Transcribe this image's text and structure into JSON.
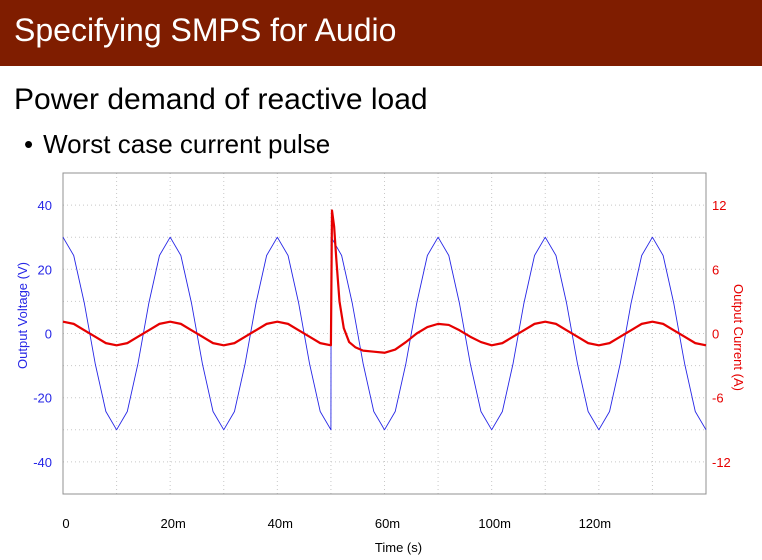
{
  "slide": {
    "title": "Specifying SMPS for Audio",
    "heading": "Power demand of reactive load",
    "bullet": "Worst case current pulse"
  },
  "colors": {
    "title_bar": "#7f1d00",
    "voltage": "#2626e6",
    "current": "#e60000",
    "grid": "#c8c8c8"
  },
  "chart_data": {
    "type": "line",
    "xlabel": "Time (s)",
    "ylabel_left": "Output Voltage (V)",
    "ylabel_right": "Output Current (A)",
    "xlim": [
      0,
      120
    ],
    "ylim_left": [
      -50,
      50
    ],
    "ylim_right": [
      -15,
      15
    ],
    "grid": true,
    "x_ticks": [
      {
        "value": 0,
        "label": "0"
      },
      {
        "value": 20,
        "label": "20m"
      },
      {
        "value": 40,
        "label": "40m"
      },
      {
        "value": 60,
        "label": "60m"
      },
      {
        "value": 100,
        "label": "100m"
      },
      {
        "value": 120,
        "label": "120m"
      }
    ],
    "y_left_ticks": [
      {
        "value": 40,
        "label": "40"
      },
      {
        "value": 20,
        "label": "20"
      },
      {
        "value": 0,
        "label": "0"
      },
      {
        "value": -20,
        "label": "-20"
      },
      {
        "value": -40,
        "label": "-40"
      }
    ],
    "y_right_ticks": [
      {
        "value": 12,
        "label": "12"
      },
      {
        "value": 6,
        "label": "6"
      },
      {
        "value": 0,
        "label": "0"
      },
      {
        "value": -6,
        "label": "-6"
      },
      {
        "value": -12,
        "label": "-12"
      }
    ],
    "series": [
      {
        "axis": "left",
        "x": [
          0,
          2,
          4,
          6,
          8,
          10,
          12,
          14,
          16,
          18,
          20,
          22,
          24,
          26,
          28,
          30,
          32,
          34,
          36,
          38,
          40,
          42,
          44,
          46,
          48,
          50,
          50.05,
          52,
          54,
          56,
          58,
          60,
          62,
          64,
          66,
          68,
          70,
          72,
          74,
          76,
          78,
          80,
          82,
          84,
          86,
          88,
          90,
          92,
          94,
          96,
          98,
          100,
          102,
          104,
          106,
          108,
          110,
          112,
          114,
          116,
          118,
          120
        ],
        "y": [
          30,
          24.3,
          9.3,
          -9.3,
          -24.3,
          -30,
          -24.3,
          -9.3,
          9.3,
          24.3,
          30,
          24.3,
          9.3,
          -9.3,
          -24.3,
          -30,
          -24.3,
          -9.3,
          9.3,
          24.3,
          30,
          24.3,
          9.3,
          -9.3,
          -24.3,
          -30,
          30,
          24.3,
          9.3,
          -9.3,
          -24.3,
          -30,
          -24.3,
          -9.3,
          9.3,
          24.3,
          30,
          24.3,
          9.3,
          -9.3,
          -24.3,
          -30,
          -24.3,
          -9.3,
          9.3,
          24.3,
          30,
          24.3,
          9.3,
          -9.3,
          -24.3,
          -30,
          -24.3,
          -9.3,
          9.3,
          24.3,
          30,
          24.3,
          9.3,
          -9.3,
          -24.3,
          -30
        ]
      },
      {
        "axis": "right",
        "x": [
          0,
          2,
          4,
          6,
          8,
          10,
          12,
          14,
          16,
          18,
          20,
          22,
          24,
          26,
          28,
          30,
          32,
          34,
          36,
          38,
          40,
          42,
          44,
          46,
          48,
          50,
          50.2,
          50.6,
          51,
          51.6,
          52.4,
          53.4,
          54.6,
          56,
          58,
          60,
          62,
          64,
          66,
          68,
          70,
          72,
          74,
          76,
          78,
          80,
          82,
          84,
          86,
          88,
          90,
          92,
          94,
          96,
          98,
          100,
          102,
          104,
          106,
          108,
          110,
          112,
          114,
          116,
          118,
          120
        ],
        "y": [
          1.1,
          0.9,
          0.3,
          -0.3,
          -0.9,
          -1.1,
          -0.9,
          -0.3,
          0.3,
          0.9,
          1.1,
          0.9,
          0.3,
          -0.3,
          -0.9,
          -1.1,
          -0.9,
          -0.3,
          0.3,
          0.9,
          1.1,
          0.9,
          0.3,
          -0.3,
          -0.9,
          -1.1,
          11.5,
          10,
          7,
          3,
          0.5,
          -0.8,
          -1.3,
          -1.6,
          -1.7,
          -1.8,
          -1.5,
          -0.8,
          0,
          0.6,
          0.9,
          0.8,
          0.3,
          -0.3,
          -0.8,
          -1.1,
          -0.9,
          -0.3,
          0.3,
          0.9,
          1.1,
          0.9,
          0.3,
          -0.3,
          -0.9,
          -1.1,
          -0.9,
          -0.3,
          0.3,
          0.9,
          1.1,
          0.9,
          0.3,
          -0.3,
          -0.9,
          -1.1
        ]
      }
    ]
  }
}
